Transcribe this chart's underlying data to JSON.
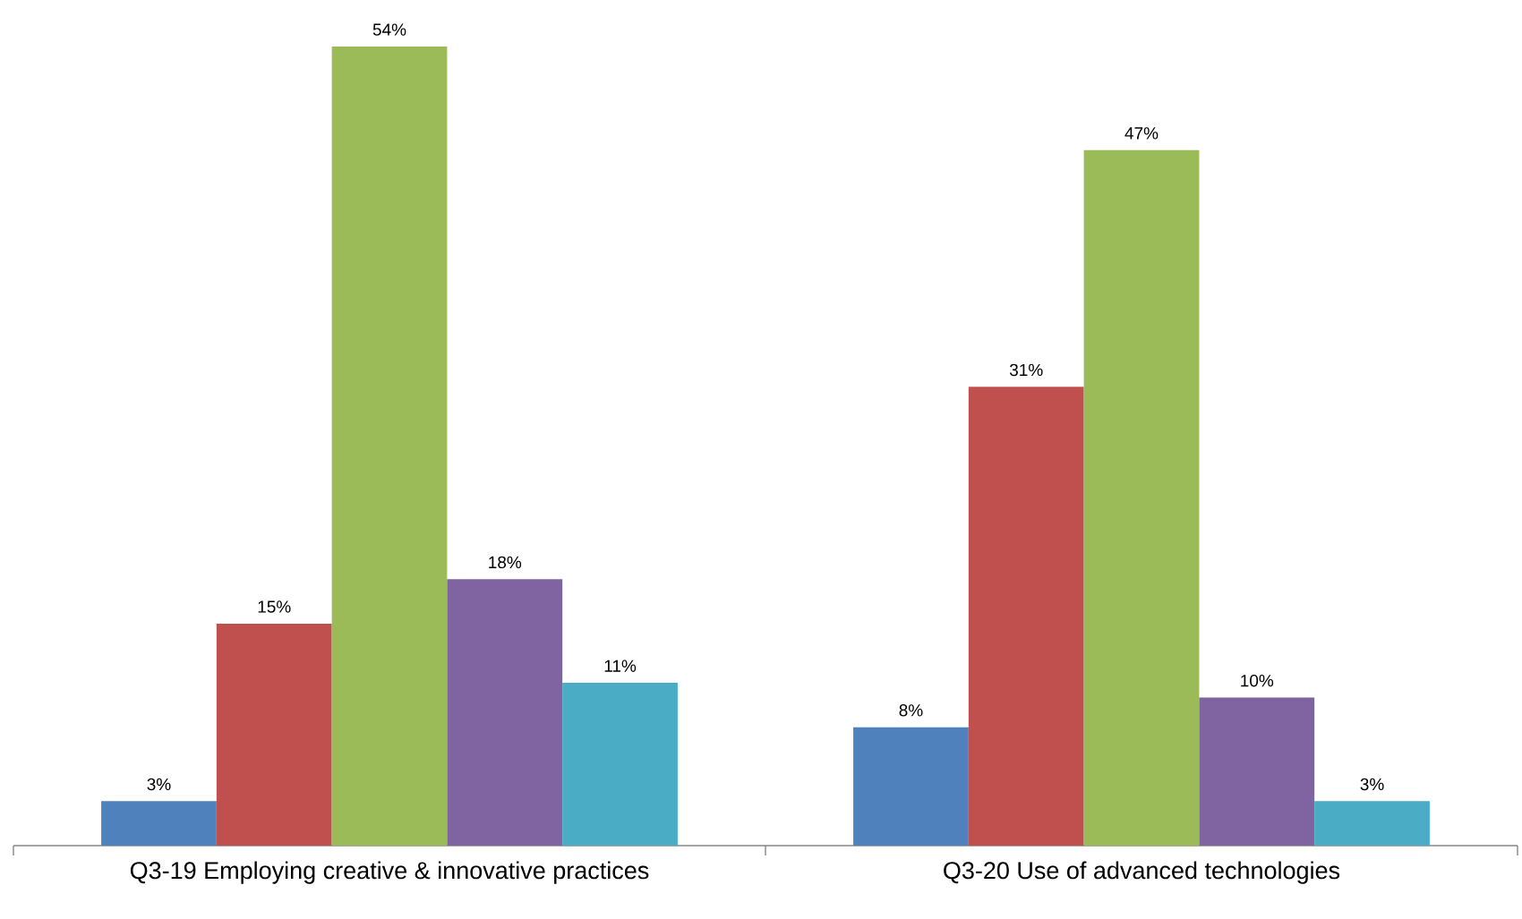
{
  "chart_data": {
    "type": "bar",
    "categories": [
      "Q3-19 Employing creative & innovative practices",
      "Q3-20 Use of advanced technologies"
    ],
    "series": [
      {
        "color": "#4f81bd",
        "values": [
          3,
          8
        ],
        "value_labels": [
          "3%",
          "8%"
        ]
      },
      {
        "color": "#c0504d",
        "values": [
          15,
          31
        ],
        "value_labels": [
          "15%",
          "31%"
        ]
      },
      {
        "color": "#9bbb59",
        "values": [
          54,
          47
        ],
        "value_labels": [
          "54%",
          "47%"
        ]
      },
      {
        "color": "#8064a2",
        "values": [
          18,
          10
        ],
        "value_labels": [
          "18%",
          "10%"
        ]
      },
      {
        "color": "#4bacc6",
        "values": [
          11,
          3
        ],
        "value_labels": [
          "11%",
          "3%"
        ]
      }
    ]
  }
}
